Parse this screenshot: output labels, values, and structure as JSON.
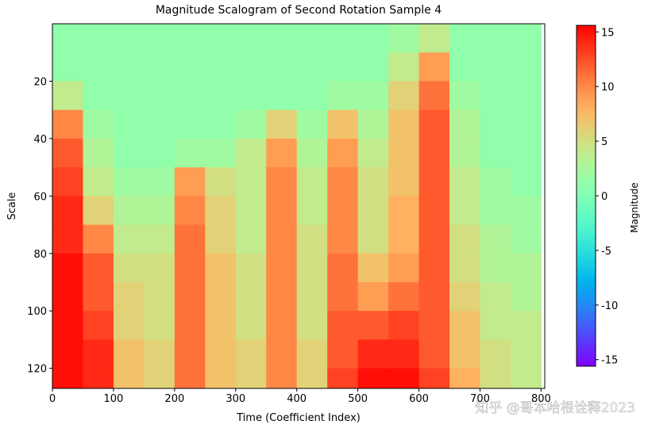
{
  "chart_data": {
    "type": "heatmap",
    "title": "Magnitude Scalogram of Second Rotation Sample 4",
    "x_label": "Time (Coefficient Index)",
    "y_label": "Scale",
    "colorbar_label": "Magnitude",
    "watermark": "知乎 @哥本哈根诠释2023",
    "colormap": "rainbow",
    "x": [
      25,
      75,
      125,
      175,
      225,
      275,
      325,
      375,
      425,
      475,
      525,
      575,
      625,
      675,
      725,
      775
    ],
    "y": [
      5,
      15,
      25,
      35,
      45,
      55,
      65,
      75,
      85,
      95,
      105,
      115,
      125
    ],
    "z": [
      [
        1,
        1,
        1,
        1,
        1,
        1,
        1,
        1,
        1,
        1,
        1,
        2,
        4,
        1,
        1,
        1
      ],
      [
        1,
        1,
        1,
        1,
        1,
        1,
        1,
        1,
        1,
        1,
        1,
        4,
        9,
        1,
        1,
        1
      ],
      [
        4,
        1,
        1,
        1,
        1,
        1,
        1,
        1,
        1,
        2,
        2,
        6,
        11,
        2,
        1,
        1
      ],
      [
        10,
        2,
        1,
        1,
        1,
        1,
        2,
        6,
        2,
        7,
        3,
        7,
        12,
        3,
        1,
        1
      ],
      [
        12,
        3,
        1,
        1,
        2,
        2,
        4,
        9,
        3,
        9,
        4,
        7,
        12,
        3,
        1,
        1
      ],
      [
        13,
        4,
        2,
        2,
        9,
        5,
        4,
        10,
        4,
        10,
        5,
        7,
        12,
        4,
        2,
        1
      ],
      [
        14,
        6,
        3,
        3,
        10,
        6,
        4,
        10,
        4,
        10,
        5,
        8,
        12,
        4,
        2,
        2
      ],
      [
        14,
        10,
        4,
        4,
        11,
        6,
        4,
        10,
        5,
        10,
        5,
        8,
        12,
        5,
        3,
        2
      ],
      [
        15,
        12,
        5,
        5,
        11,
        7,
        5,
        10,
        5,
        11,
        7,
        9,
        12,
        5,
        3,
        3
      ],
      [
        15,
        12,
        6,
        5,
        11,
        7,
        5,
        10,
        5,
        11,
        9,
        11,
        12,
        6,
        4,
        3
      ],
      [
        15,
        13,
        6,
        5,
        11,
        7,
        5,
        10,
        5,
        12,
        12,
        13,
        12,
        7,
        4,
        4
      ],
      [
        15,
        14,
        7,
        6,
        11,
        7,
        6,
        10,
        6,
        12,
        14,
        14,
        12,
        7,
        5,
        4
      ],
      [
        15,
        14,
        7,
        6,
        11,
        7,
        6,
        10,
        6,
        13,
        15,
        15,
        13,
        8,
        5,
        4
      ]
    ],
    "xlim": [
      0,
      806
    ],
    "ylim": [
      127,
      0
    ],
    "xticks": [
      0,
      100,
      200,
      300,
      400,
      500,
      600,
      700,
      800
    ],
    "yticks": [
      20,
      40,
      60,
      80,
      100,
      120
    ],
    "clim": [
      -15.6,
      15.6
    ],
    "cticks": [
      -15,
      -10,
      -5,
      0,
      5,
      10,
      15
    ]
  }
}
